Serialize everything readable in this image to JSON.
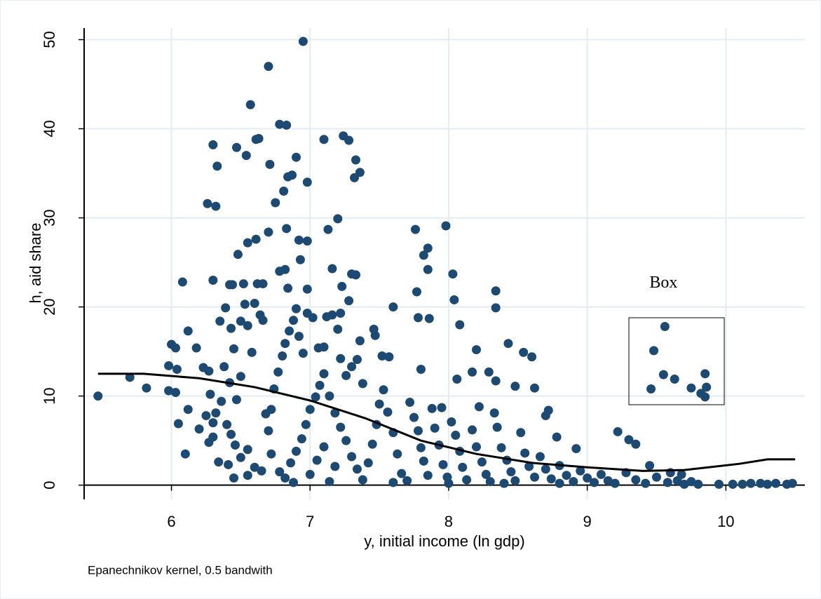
{
  "chart_data": {
    "type": "scatter",
    "xlabel": "y, initial income (ln gdp)",
    "ylabel": "h, aid share",
    "note": "Epanechnikov kernel, 0.5 bandwith",
    "annotation": {
      "text": "Box",
      "x": 9.55,
      "y": 22.6
    },
    "xlim": [
      5.37,
      10.57
    ],
    "ylim": [
      -1.6,
      51.3
    ],
    "xticks": [
      6,
      7,
      8,
      9,
      10
    ],
    "yticks": [
      0,
      10,
      20,
      30,
      40,
      50
    ],
    "grid": true,
    "series": [
      {
        "type": "scatter",
        "color": "#1d4a72",
        "x": [
          6.95,
          6.7,
          6.57,
          6.78,
          6.83,
          6.63,
          6.61,
          6.3,
          6.47,
          6.54,
          6.9,
          6.71,
          6.33,
          6.87,
          6.84,
          6.98,
          7.1,
          7.24,
          7.28,
          7.33,
          7.36,
          7.32,
          6.81,
          6.75,
          6.26,
          6.32,
          7.2,
          7.13,
          6.83,
          6.7,
          6.61,
          6.55,
          6.92,
          6.98,
          6.93,
          6.48,
          6.78,
          6.82,
          7.16,
          7.3,
          7.33,
          6.08,
          6.3,
          6.42,
          6.44,
          6.52,
          6.62,
          6.66,
          6.84,
          6.98,
          7.23,
          7.76,
          7.98,
          7.82,
          7.85,
          7.85,
          8.03,
          7.77,
          8.34,
          8.34,
          8.04,
          8.08,
          7.78,
          7.86,
          7.6,
          7.46,
          7.47,
          7.36,
          7.52,
          7.57,
          7.8,
          8.2,
          8.43,
          8.54,
          8.6,
          8.06,
          8.17,
          8.29,
          8.34,
          8.48,
          8.62,
          8.72,
          8.7,
          8.78,
          8.92,
          9.22,
          9.3,
          9.35,
          9.45,
          9.48,
          9.56,
          9.55,
          9.63,
          9.75,
          9.82,
          9.85,
          9.86,
          9.85,
          9.46,
          6.0,
          6.03,
          5.98,
          6.04,
          5.98,
          6.03,
          6.12,
          6.18,
          6.23,
          6.27,
          6.28,
          6.25,
          6.3,
          6.32,
          6.27,
          6.05,
          6.1,
          6.12,
          6.35,
          6.39,
          6.43,
          6.45,
          6.5,
          6.53,
          6.55,
          6.6,
          6.64,
          6.66,
          6.58,
          6.38,
          6.42,
          6.5,
          6.47,
          6.36,
          6.4,
          6.43,
          6.46,
          6.34,
          6.41,
          6.5,
          6.55,
          6.6,
          6.65,
          6.7,
          6.72,
          6.74,
          6.77,
          6.8,
          6.82,
          6.85,
          6.88,
          6.9,
          6.92,
          6.95,
          6.98,
          7.02,
          7.06,
          7.1,
          7.12,
          7.16,
          7.2,
          7.22,
          7.26,
          7.3,
          7.34,
          7.38,
          7.28,
          7.22,
          6.78,
          6.82,
          6.86,
          6.9,
          6.94,
          6.97,
          7.0,
          7.04,
          7.07,
          7.1,
          7.14,
          7.18,
          7.22,
          7.26,
          7.3,
          7.34,
          7.38,
          7.0,
          7.05,
          7.1,
          7.14,
          7.18,
          7.42,
          7.45,
          7.48,
          7.5,
          7.53,
          7.56,
          7.6,
          7.63,
          7.66,
          7.7,
          7.72,
          7.75,
          7.78,
          7.8,
          7.82,
          7.85,
          7.88,
          7.9,
          7.93,
          7.96,
          7.99,
          8.02,
          8.05,
          8.08,
          8.1,
          8.13,
          8.17,
          8.2,
          8.24,
          8.27,
          8.3,
          8.33,
          8.35,
          8.38,
          8.42,
          8.45,
          8.48,
          8.52,
          8.55,
          8.58,
          8.62,
          8.66,
          8.7,
          8.74,
          8.8,
          8.85,
          8.9,
          8.95,
          9.0,
          9.05,
          9.1,
          9.15,
          9.2,
          9.28,
          9.35,
          9.42,
          9.5,
          9.58,
          9.65,
          9.7,
          9.75,
          9.8,
          9.95,
          10.05,
          10.12,
          10.18,
          10.25,
          10.3,
          10.36,
          10.44,
          10.48,
          5.47,
          5.7,
          5.82,
          6.45,
          6.55,
          6.3,
          6.2,
          6.68,
          6.72,
          6.88,
          7.95,
          8.22,
          8,
          7.6,
          8.4,
          8.8,
          9.6,
          9.68
        ],
        "values": [
          49.8,
          47,
          42.7,
          40.5,
          40.4,
          38.9,
          38.8,
          38.2,
          37.9,
          37,
          36.8,
          36,
          35.8,
          34.8,
          34.6,
          34,
          38.8,
          39.2,
          38.7,
          36.5,
          35.1,
          34.5,
          33,
          31.7,
          31.6,
          31.3,
          29.9,
          28.7,
          28.8,
          28.4,
          27.6,
          27.2,
          27.5,
          27.4,
          25.3,
          25.9,
          24,
          24.2,
          24.3,
          23.7,
          23.6,
          22.8,
          23,
          22.5,
          22.5,
          22.6,
          22.6,
          22.6,
          22.1,
          22,
          22.3,
          28.7,
          29.1,
          25.8,
          26.6,
          24.2,
          23.7,
          21.7,
          21.8,
          19.9,
          20.8,
          18,
          18.8,
          18.7,
          20,
          17.5,
          16.8,
          16.2,
          14.5,
          14.4,
          13,
          15.2,
          15.9,
          14.9,
          14.4,
          11.9,
          12.7,
          12.7,
          11.7,
          11.1,
          10.9,
          8.4,
          7.8,
          5.4,
          4.1,
          6,
          5.1,
          4.6,
          2.2,
          15.1,
          17.8,
          12.4,
          11.9,
          10.9,
          10.3,
          12.5,
          11,
          9.9,
          10.8,
          15.8,
          15.4,
          13.4,
          13,
          10.6,
          10.4,
          17.3,
          15.4,
          13.2,
          12.8,
          10.2,
          7.8,
          7,
          8.1,
          4.8,
          6.9,
          3.5,
          8.5,
          18.4,
          19.9,
          17.6,
          15.3,
          18.4,
          20.3,
          17.9,
          20.4,
          19.1,
          18.5,
          14.9,
          13.3,
          11.5,
          12.2,
          9.6,
          9.4,
          6.8,
          5.7,
          4.5,
          2.6,
          2.3,
          3.1,
          4,
          2,
          1.6,
          6.1,
          8.5,
          10.8,
          12.7,
          14.5,
          15.9,
          17.3,
          18.5,
          19.8,
          16.7,
          14.8,
          19.3,
          18.8,
          15.4,
          15.5,
          18.9,
          19.1,
          17.5,
          14.2,
          12.3,
          13.3,
          14.1,
          11.4,
          20.7,
          19.3,
          1.5,
          0.8,
          2.5,
          3.8,
          5.2,
          6.8,
          8.5,
          9.9,
          11.2,
          12.5,
          10,
          8.1,
          6.5,
          5,
          3.2,
          1.8,
          0.6,
          1.2,
          2.8,
          4.3,
          0.4,
          2.1,
          2.5,
          4.6,
          6.8,
          9.1,
          10.7,
          8.2,
          5.9,
          3.5,
          1.3,
          0.5,
          9.3,
          7.6,
          6.1,
          4.2,
          2.7,
          1.1,
          8.6,
          6.4,
          4.5,
          2.3,
          0.9,
          7.1,
          5.6,
          3.8,
          2,
          0.6,
          6.2,
          4.3,
          2.6,
          1.2,
          0.4,
          8.1,
          6.5,
          4.2,
          2.8,
          1.5,
          0.5,
          5.9,
          3.6,
          2.1,
          0.9,
          3.2,
          1.8,
          0.7,
          2.2,
          1.1,
          0.4,
          1.6,
          0.8,
          0.3,
          1.2,
          0.5,
          0.2,
          1.4,
          0.6,
          0.2,
          0.9,
          0.3,
          0.5,
          0.1,
          0.4,
          0.1,
          0.1,
          0.1,
          0.1,
          0.2,
          0.2,
          0.1,
          0.2,
          0.1,
          0.2,
          10,
          12.1,
          10.9,
          0.8,
          1.1,
          5.4,
          6.3,
          8,
          3.5,
          0.3,
          8.7,
          8.8,
          0.2,
          0.3,
          0.2,
          0.2,
          1.4,
          1.2
        ]
      },
      {
        "type": "line",
        "color": "#000000",
        "x": [
          5.47,
          5.8,
          6.2,
          6.6,
          7.0,
          7.4,
          7.8,
          8.2,
          8.6,
          9.0,
          9.4,
          9.7,
          10.1,
          10.3,
          10.5
        ],
        "values": [
          12.5,
          12.5,
          12,
          11,
          9.5,
          7.5,
          5,
          3.5,
          2.5,
          2,
          1.6,
          1.7,
          2.4,
          2.9,
          2.9
        ]
      }
    ]
  }
}
